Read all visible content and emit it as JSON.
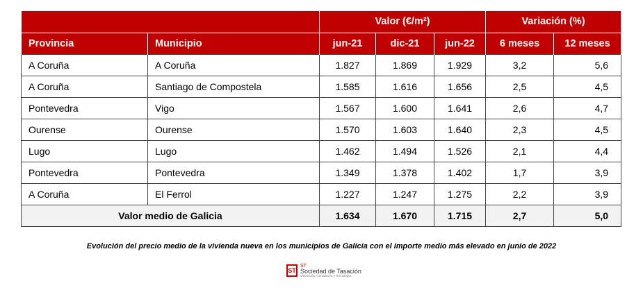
{
  "table": {
    "group_headers": [
      "Valor (€/m²)",
      "Variación (%)"
    ],
    "columns": [
      "Provincia",
      "Municipio",
      "jun-21",
      "dic-21",
      "jun-22",
      "6 meses",
      "12 meses"
    ],
    "rows": [
      [
        "A Coruña",
        "A Coruña",
        "1.827",
        "1.869",
        "1.929",
        "3,2",
        "5,6"
      ],
      [
        "A Coruña",
        "Santiago de Compostela",
        "1.585",
        "1.616",
        "1.656",
        "2,5",
        "4,5"
      ],
      [
        "Pontevedra",
        "Vigo",
        "1.567",
        "1.600",
        "1.641",
        "2,6",
        "4,7"
      ],
      [
        "Ourense",
        "Ourense",
        "1.570",
        "1.603",
        "1.640",
        "2,3",
        "4,5"
      ],
      [
        "Lugo",
        "Lugo",
        "1.462",
        "1.494",
        "1.526",
        "2,1",
        "4,4"
      ],
      [
        "Pontevedra",
        "Pontevedra",
        "1.349",
        "1.378",
        "1.402",
        "1,7",
        "3,9"
      ],
      [
        "A Coruña",
        "El Ferrol",
        "1.227",
        "1.247",
        "1.275",
        "2,2",
        "3,9"
      ]
    ],
    "footer": {
      "label": "Valor medio de Galicia",
      "values": [
        "1.634",
        "1.670",
        "1.715",
        "2,7",
        "5,0"
      ]
    }
  },
  "caption": "Evolución del precio medio de la vivienda nueva en los municipios de Galicia con el importe medio más elevado en junio de 2022",
  "logo": {
    "mark": "ST",
    "name": "Sociedad de Tasación",
    "tagline": "Valoración, Consultoría y Tecnología"
  }
}
